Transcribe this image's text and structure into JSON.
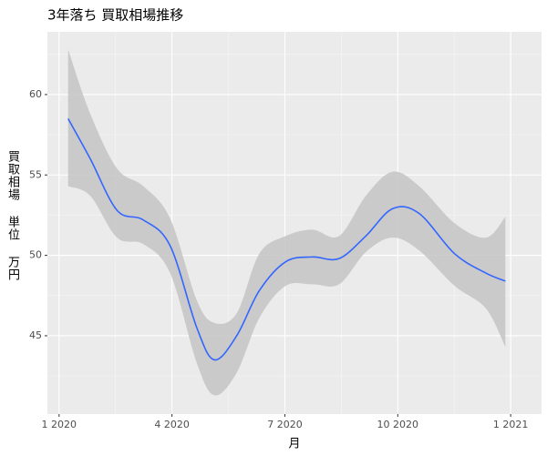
{
  "chart_data": {
    "type": "smooth",
    "title": "3年落ち 買取相場推移",
    "xlabel": "月",
    "ylabel": "買取相場 単位 万円",
    "x": [
      0.24,
      0.83,
      1.54,
      2.24,
      2.95,
      3.66,
      4.13,
      4.72,
      5.32,
      6.02,
      6.73,
      7.44,
      8.15,
      8.86,
      9.57,
      10.51,
      11.34,
      11.86
    ],
    "values": [
      58.5,
      56.0,
      52.8,
      52.2,
      50.6,
      45.5,
      43.5,
      45.0,
      47.8,
      49.6,
      49.9,
      49.8,
      51.2,
      52.9,
      52.6,
      50.1,
      48.9,
      48.4
    ],
    "upper": [
      62.8,
      58.8,
      55.4,
      54.3,
      52.3,
      47.2,
      45.8,
      46.4,
      50.1,
      51.2,
      51.6,
      51.2,
      53.7,
      55.2,
      54.3,
      52.0,
      51.1,
      52.4
    ],
    "lower": [
      54.3,
      53.7,
      51.1,
      50.7,
      48.9,
      43.3,
      41.3,
      42.7,
      46.1,
      48.1,
      48.2,
      48.2,
      50.2,
      51.1,
      50.3,
      48.1,
      46.7,
      44.3
    ],
    "color": "#3366ff",
    "band_color": "#c4c4c4",
    "xlim": [
      -0.31,
      12.82
    ],
    "xticks": [
      {
        "value": 0,
        "label": "1 2020"
      },
      {
        "value": 3,
        "label": "4 2020"
      },
      {
        "value": 6,
        "label": "7 2020"
      },
      {
        "value": 9,
        "label": "10 2020"
      },
      {
        "value": 12,
        "label": "1 2021"
      }
    ],
    "ylim": [
      40.13,
      63.9
    ],
    "yticks": [
      45,
      50,
      55,
      60
    ],
    "grid": true
  }
}
